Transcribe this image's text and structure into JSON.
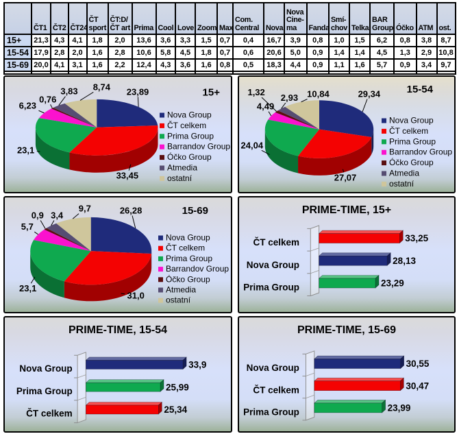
{
  "table": {
    "columns": [
      "",
      "ČT1",
      "ČT2",
      "ČT24",
      "ČT\nsport",
      "ČT:D/\nČT art",
      "Prima",
      "Cool",
      "Love",
      "Zoom",
      "Max",
      "Com.\nCentral",
      "Nova",
      "Nova\nCine-\nma",
      "Fanda",
      "Smí-\nchov",
      "Telka",
      "BAR\nGroup",
      "Óčko",
      "ATM",
      "ost."
    ],
    "rows": [
      {
        "label": "15+",
        "values": [
          "21,3",
          "4,3",
          "4,1",
          "1,8",
          "2,0",
          "13,6",
          "3,6",
          "3,3",
          "1,5",
          "0,7",
          "0,4",
          "16,7",
          "3,9",
          "0,8",
          "1,0",
          "1,5",
          "6,2",
          "0,8",
          "3,8",
          "8,7"
        ]
      },
      {
        "label": "15-54",
        "values": [
          "17,9",
          "2,8",
          "2,0",
          "1,6",
          "2,8",
          "10,6",
          "5,8",
          "4,5",
          "1,8",
          "0,7",
          "0,6",
          "20,6",
          "5,0",
          "0,9",
          "1,4",
          "1,4",
          "4,5",
          "1,3",
          "2,9",
          "10,8"
        ]
      },
      {
        "label": "15-69",
        "values": [
          "20,0",
          "4,1",
          "3,1",
          "1,6",
          "2,2",
          "12,4",
          "4,3",
          "3,6",
          "1,6",
          "0,8",
          "0,5",
          "18,3",
          "4,4",
          "0,9",
          "1,1",
          "1,6",
          "5,7",
          "0,9",
          "3,4",
          "9,7"
        ]
      }
    ]
  },
  "palette": {
    "navy": "#1f2b7b",
    "red": "#f40202",
    "green": "#0fa94f",
    "magenta": "#fb12ce",
    "maroon": "#5a0e10",
    "slate": "#564d72",
    "tan": "#cfc69c",
    "text": "#000000"
  },
  "chart_data": [
    {
      "type": "pie",
      "title": "15+",
      "legend_position": "right",
      "labels": [
        "Nova Group",
        "ČT celkem",
        "Prima Group",
        "Barrandov Group",
        "Óčko Group",
        "Atmedia",
        "ostatní"
      ],
      "colors": [
        "navy",
        "red",
        "green",
        "magenta",
        "maroon",
        "slate",
        "tan"
      ],
      "values": [
        23.89,
        33.45,
        23.1,
        6.23,
        0.76,
        3.83,
        8.74
      ],
      "value_labels": [
        "23,89",
        "33,45",
        "23,1",
        "6,23",
        "0,76",
        "3,83",
        "8,74"
      ]
    },
    {
      "type": "pie",
      "title": "15-54",
      "legend_position": "right",
      "labels": [
        "Nova Group",
        "ČT celkem",
        "Prima Group",
        "Barrandov Group",
        "Óčko Group",
        "Atmedia",
        "ostatní"
      ],
      "colors": [
        "navy",
        "red",
        "green",
        "magenta",
        "maroon",
        "slate",
        "tan"
      ],
      "values": [
        29.34,
        27.07,
        24.04,
        4.49,
        1.32,
        2.93,
        10.84
      ],
      "value_labels": [
        "29,34",
        "27,07",
        "24,04",
        "4,49",
        "1,32",
        "2,93",
        "10,84"
      ]
    },
    {
      "type": "pie",
      "title": "15-69",
      "legend_position": "right",
      "labels": [
        "Nova Group",
        "ČT celkem",
        "Prima Group",
        "Barrandov Group",
        "Óčko Group",
        "Atmedia",
        "ostatní"
      ],
      "colors": [
        "navy",
        "red",
        "green",
        "magenta",
        "maroon",
        "slate",
        "tan"
      ],
      "values": [
        26.28,
        31.0,
        23.1,
        5.7,
        0.9,
        3.4,
        9.7
      ],
      "value_labels": [
        "26,28",
        "31,0",
        "23,1",
        "5,7",
        "0,9",
        "3,4",
        "9,7"
      ]
    },
    {
      "type": "bar",
      "title": "PRIME-TIME, 15+",
      "categories": [
        "ČT celkem",
        "Nova Group",
        "Prima Group"
      ],
      "colors": [
        "red",
        "navy",
        "green"
      ],
      "values": [
        33.25,
        28.13,
        23.29
      ],
      "value_labels": [
        "33,25",
        "28,13",
        "23,29"
      ]
    },
    {
      "type": "bar",
      "title": "PRIME-TIME, 15-54",
      "categories": [
        "Nova Group",
        "Prima Group",
        "ČT celkem"
      ],
      "colors": [
        "navy",
        "green",
        "red"
      ],
      "values": [
        33.9,
        25.99,
        25.34
      ],
      "value_labels": [
        "33,9",
        "25,99",
        "25,34"
      ]
    },
    {
      "type": "bar",
      "title": "PRIME-TIME, 15-69",
      "categories": [
        "Nova Group",
        "ČT celkem",
        "Prima Group"
      ],
      "colors": [
        "navy",
        "red",
        "green"
      ],
      "values": [
        30.55,
        30.47,
        23.99
      ],
      "value_labels": [
        "30,55",
        "30,47",
        "23,99"
      ]
    }
  ]
}
